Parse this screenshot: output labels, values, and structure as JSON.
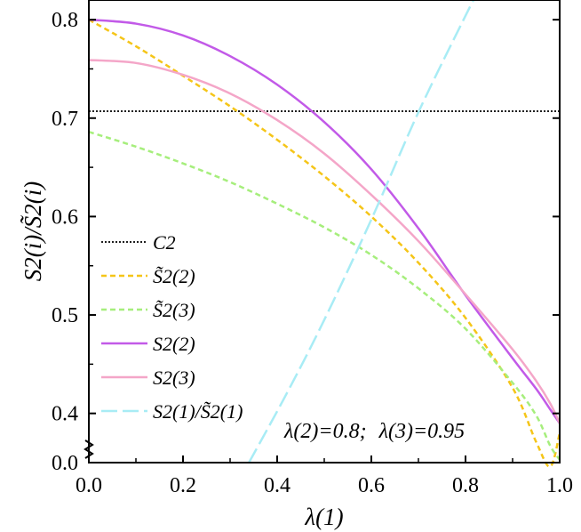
{
  "chart_data": {
    "type": "line",
    "xlabel": "λ(1)",
    "ylabel": "S2(i)/S̃2(i)",
    "xlim": [
      0.0,
      1.0
    ],
    "ylim": [
      0.35,
      0.82
    ],
    "axis_break": {
      "shown_value": 0.0,
      "note": "y axis broken between 0.0 and 0.4"
    },
    "x_ticks": [
      "0.0",
      "0.2",
      "0.4",
      "0.6",
      "0.8",
      "1.0"
    ],
    "x_tick_values": [
      0.0,
      0.2,
      0.4,
      0.6,
      0.8,
      1.0
    ],
    "y_ticks": [
      "0.0",
      "0.4",
      "0.5",
      "0.6",
      "0.7",
      "0.8"
    ],
    "y_tick_values": [
      0.35,
      0.4,
      0.5,
      0.6,
      0.7,
      0.8
    ],
    "annotation": {
      "lambda2": "λ(2)=0.8;",
      "lambda3": "λ(3)=0.95"
    },
    "legend_position": "left",
    "series": [
      {
        "name": "C2",
        "color": "#000000",
        "dash": "dotted",
        "x": [
          0.0,
          1.0
        ],
        "y": [
          0.707,
          0.707
        ]
      },
      {
        "name": "S̃2(2)",
        "color": "#f5c518",
        "dash": "dashed",
        "x": [
          0.0,
          0.1,
          0.2,
          0.3,
          0.4,
          0.5,
          0.6,
          0.7,
          0.8,
          0.9,
          0.95,
          0.98,
          1.0
        ],
        "y": [
          0.8,
          0.773,
          0.743,
          0.712,
          0.678,
          0.641,
          0.6,
          0.553,
          0.497,
          0.426,
          0.371,
          0.346,
          0.38
        ]
      },
      {
        "name": "S̃2(3)",
        "color": "#a6ee7c",
        "dash": "dashed",
        "x": [
          0.0,
          0.1,
          0.2,
          0.3,
          0.4,
          0.5,
          0.6,
          0.7,
          0.8,
          0.9,
          0.95,
          0.98,
          1.0
        ],
        "y": [
          0.686,
          0.671,
          0.654,
          0.635,
          0.613,
          0.589,
          0.561,
          0.527,
          0.486,
          0.431,
          0.398,
          0.367,
          0.353
        ]
      },
      {
        "name": "S2(2)",
        "color": "#c25ae8",
        "dash": "solid",
        "x": [
          0.0,
          0.1,
          0.2,
          0.3,
          0.4,
          0.5,
          0.6,
          0.7,
          0.8,
          0.9,
          0.95,
          0.98,
          1.0
        ],
        "y": [
          0.8,
          0.796,
          0.784,
          0.763,
          0.734,
          0.696,
          0.648,
          0.588,
          0.52,
          0.456,
          0.425,
          0.404,
          0.39
        ]
      },
      {
        "name": "S2(3)",
        "color": "#f4a6c8",
        "dash": "solid",
        "x": [
          0.0,
          0.1,
          0.2,
          0.3,
          0.4,
          0.5,
          0.6,
          0.7,
          0.8,
          0.9,
          0.95,
          0.98,
          1.0
        ],
        "y": [
          0.759,
          0.756,
          0.744,
          0.725,
          0.698,
          0.664,
          0.622,
          0.575,
          0.521,
          0.465,
          0.433,
          0.41,
          0.39
        ]
      },
      {
        "name": "S2(1)/S̃2(1)",
        "color": "#a8ecf5",
        "dash": "longdash",
        "x": [
          0.34,
          0.42,
          0.5,
          0.6,
          0.7,
          0.8,
          0.82
        ],
        "y": [
          0.35,
          0.42,
          0.495,
          0.597,
          0.706,
          0.804,
          0.822
        ]
      }
    ]
  }
}
